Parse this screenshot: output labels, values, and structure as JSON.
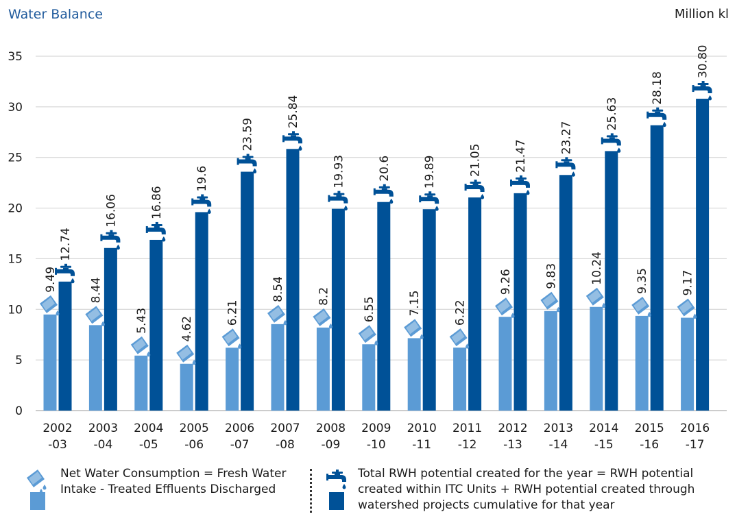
{
  "title": "Water Balance",
  "unit": "Million kl",
  "colors": {
    "light": "#5b9bd5",
    "dark": "#005197",
    "title": "#1f5a9c"
  },
  "legend": {
    "net": "Net Water Consumption = Fresh Water Intake - Treated Effluents Discharged",
    "rwh": "Total RWH potential created for the year = RWH potential created within ITC Units + RWH potential created through watershed projects cumulative for that year"
  },
  "chart_data": {
    "type": "bar",
    "categories": [
      [
        "2002",
        "-03"
      ],
      [
        "2003",
        "-04"
      ],
      [
        "2004",
        "-05"
      ],
      [
        "2005",
        "-06"
      ],
      [
        "2006",
        "-07"
      ],
      [
        "2007",
        "-08"
      ],
      [
        "2008",
        "-09"
      ],
      [
        "2009",
        "-10"
      ],
      [
        "2010",
        "-11"
      ],
      [
        "2011",
        "-12"
      ],
      [
        "2012",
        "-13"
      ],
      [
        "2013",
        "-14"
      ],
      [
        "2014",
        "-15"
      ],
      [
        "2015",
        "-16"
      ],
      [
        "2016",
        "-17"
      ]
    ],
    "series": [
      {
        "values": [
          9.49,
          8.44,
          5.43,
          4.62,
          6.21,
          8.54,
          8.2,
          6.55,
          7.15,
          6.22,
          9.26,
          9.83,
          10.24,
          9.35,
          9.17
        ],
        "labels": [
          "9.49",
          "8.44",
          "5.43",
          "4.62",
          "6.21",
          "8.54",
          "8.2",
          "6.55",
          "7.15",
          "6.22",
          "9.26",
          "9.83",
          "10.24",
          "9.35",
          "9.17"
        ],
        "color": "#5b9bd5",
        "icon": "water-bucket-icon"
      },
      {
        "values": [
          12.74,
          16.06,
          16.86,
          19.6,
          23.59,
          25.84,
          19.93,
          20.6,
          19.89,
          21.05,
          21.47,
          23.27,
          25.63,
          28.18,
          30.8
        ],
        "labels": [
          "12.74",
          "16.06",
          "16.86",
          "19.6",
          "23.59",
          "25.84",
          "19.93",
          "20.6",
          "19.89",
          "21.05",
          "21.47",
          "23.27",
          "25.63",
          "28.18",
          "30.80"
        ],
        "color": "#005197",
        "icon": "water-tap-icon"
      }
    ],
    "yticks": [
      0,
      5,
      10,
      15,
      20,
      25,
      30,
      35
    ],
    "ylim": [
      0,
      35
    ],
    "grid": true,
    "legend_position": "bottom"
  }
}
